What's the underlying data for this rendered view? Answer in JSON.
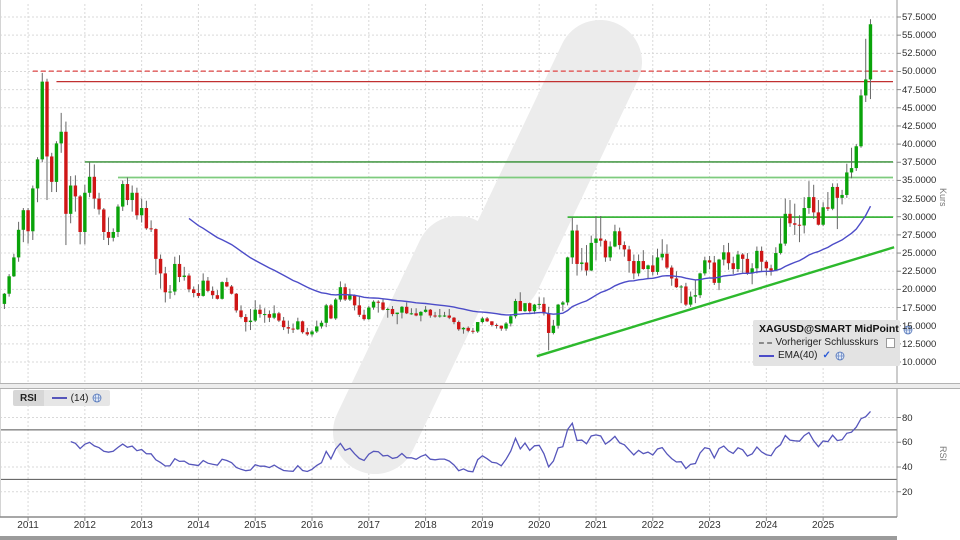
{
  "colors": {
    "up": "#0aa30a",
    "down": "#cf1616",
    "wick": "#666666",
    "ema": "#4c4cc8",
    "rsi": "#5656bb",
    "grid": "#d9d9d9",
    "axis": "#888888",
    "rsi_level": "#555555",
    "watermark": "#ececec",
    "text": "#2b2b2b"
  },
  "legend_main": {
    "title": "XAGUSD@SMART MidPoint",
    "prev_close_label": "Vorheriger Schlusskurs",
    "ema_label": "EMA(40)"
  },
  "legend_rsi": {
    "label": "RSI",
    "params": "(14)"
  },
  "icons": {
    "ema_visible_check": "✓"
  },
  "axes": {
    "price_axis_title": "Kurs",
    "rsi_axis_title": "RSI",
    "price_ticks": [
      57.5,
      55,
      52.5,
      50,
      47.5,
      45,
      42.5,
      40,
      37.5,
      35,
      32.5,
      30,
      27.5,
      25,
      22.5,
      20,
      17.5,
      15,
      12.5,
      10
    ],
    "rsi_ticks": [
      80,
      60,
      40,
      20
    ],
    "years": [
      "2011",
      "2012",
      "2013",
      "2014",
      "2015",
      "2016",
      "2017",
      "2018",
      "2019",
      "2020",
      "2021",
      "2022",
      "2023",
      "2024",
      "2025"
    ]
  },
  "chart_data": {
    "type": "candlestick",
    "title": "XAGUSD@SMART MidPoint",
    "start_month": "2010-08",
    "interval": "monthly",
    "ylim": [
      10,
      57.5
    ],
    "rsi_range_lines": [
      30,
      70
    ],
    "indicators": [
      {
        "name": "EMA",
        "period": 40
      },
      {
        "name": "RSI",
        "period": 14
      }
    ],
    "ohlc": [
      [
        18.0,
        19.5,
        17.3,
        19.4
      ],
      [
        19.4,
        22.1,
        19.0,
        21.8
      ],
      [
        21.8,
        24.9,
        21.7,
        24.4
      ],
      [
        24.4,
        29.3,
        23.8,
        28.2
      ],
      [
        28.2,
        31.2,
        26.5,
        30.9
      ],
      [
        30.9,
        31.2,
        26.3,
        28.0
      ],
      [
        28.0,
        34.3,
        26.8,
        33.9
      ],
      [
        33.9,
        38.2,
        32.0,
        37.9
      ],
      [
        37.9,
        49.8,
        37.5,
        48.6
      ],
      [
        48.6,
        49.0,
        32.3,
        38.3
      ],
      [
        38.3,
        38.8,
        33.4,
        34.8
      ],
      [
        34.8,
        40.4,
        33.4,
        40.1
      ],
      [
        40.1,
        44.3,
        38.8,
        41.7
      ],
      [
        41.7,
        43.1,
        26.1,
        30.4
      ],
      [
        30.4,
        35.6,
        29.1,
        34.3
      ],
      [
        34.3,
        35.7,
        30.7,
        32.8
      ],
      [
        32.8,
        33.0,
        26.2,
        27.9
      ],
      [
        27.9,
        34.4,
        26.2,
        33.3
      ],
      [
        33.3,
        37.5,
        32.7,
        35.5
      ],
      [
        35.5,
        37.2,
        31.1,
        32.5
      ],
      [
        32.5,
        33.3,
        30.3,
        31.0
      ],
      [
        31.0,
        31.2,
        26.8,
        27.9
      ],
      [
        27.9,
        29.9,
        26.1,
        27.1
      ],
      [
        27.1,
        28.4,
        26.6,
        27.9
      ],
      [
        27.9,
        31.7,
        27.2,
        31.4
      ],
      [
        31.4,
        35.0,
        30.8,
        34.5
      ],
      [
        34.5,
        35.4,
        31.6,
        32.3
      ],
      [
        32.3,
        34.3,
        30.7,
        33.3
      ],
      [
        33.3,
        34.0,
        29.6,
        30.2
      ],
      [
        30.2,
        32.5,
        29.2,
        31.2
      ],
      [
        31.2,
        32.2,
        28.2,
        28.4
      ],
      [
        28.4,
        29.5,
        27.9,
        28.3
      ],
      [
        28.3,
        28.4,
        22.0,
        24.2
      ],
      [
        24.2,
        24.8,
        20.1,
        22.2
      ],
      [
        22.2,
        23.1,
        18.2,
        19.6
      ],
      [
        19.6,
        20.6,
        18.7,
        19.7
      ],
      [
        19.7,
        24.5,
        19.2,
        23.5
      ],
      [
        23.5,
        24.7,
        21.0,
        21.7
      ],
      [
        21.7,
        23.1,
        21.2,
        21.9
      ],
      [
        21.9,
        22.2,
        19.6,
        20.0
      ],
      [
        20.0,
        20.4,
        18.9,
        19.5
      ],
      [
        19.5,
        20.7,
        18.8,
        19.1
      ],
      [
        19.1,
        22.2,
        19.0,
        21.2
      ],
      [
        21.2,
        21.7,
        19.6,
        19.8
      ],
      [
        19.8,
        20.4,
        18.7,
        19.2
      ],
      [
        19.2,
        19.9,
        18.6,
        18.7
      ],
      [
        18.7,
        21.1,
        18.6,
        21.0
      ],
      [
        21.0,
        21.6,
        20.3,
        20.4
      ],
      [
        20.4,
        20.6,
        19.3,
        19.4
      ],
      [
        19.4,
        19.5,
        16.8,
        17.1
      ],
      [
        17.1,
        17.8,
        16.0,
        16.2
      ],
      [
        16.2,
        16.6,
        14.2,
        15.5
      ],
      [
        15.5,
        17.3,
        14.4,
        15.7
      ],
      [
        15.7,
        18.5,
        15.5,
        17.2
      ],
      [
        17.2,
        17.9,
        16.1,
        16.6
      ],
      [
        16.6,
        17.4,
        15.4,
        16.6
      ],
      [
        16.6,
        17.1,
        15.5,
        16.1
      ],
      [
        16.1,
        17.8,
        15.9,
        16.7
      ],
      [
        16.7,
        16.9,
        15.5,
        15.7
      ],
      [
        15.7,
        16.2,
        14.4,
        14.8
      ],
      [
        14.8,
        15.7,
        13.9,
        14.6
      ],
      [
        14.6,
        15.3,
        14.0,
        14.5
      ],
      [
        14.5,
        16.1,
        14.4,
        15.6
      ],
      [
        15.6,
        15.7,
        13.9,
        14.1
      ],
      [
        14.1,
        14.7,
        13.6,
        13.8
      ],
      [
        13.8,
        14.4,
        13.5,
        14.2
      ],
      [
        14.2,
        15.7,
        14.0,
        14.9
      ],
      [
        14.9,
        15.7,
        14.6,
        15.4
      ],
      [
        15.4,
        18.0,
        14.8,
        17.8
      ],
      [
        17.8,
        18.0,
        15.9,
        16.0
      ],
      [
        16.0,
        18.8,
        15.8,
        18.6
      ],
      [
        18.6,
        21.1,
        18.3,
        20.3
      ],
      [
        20.3,
        20.8,
        18.4,
        18.6
      ],
      [
        18.6,
        20.1,
        18.4,
        19.2
      ],
      [
        19.2,
        19.3,
        17.1,
        17.8
      ],
      [
        17.8,
        19.0,
        16.2,
        16.5
      ],
      [
        16.5,
        17.2,
        15.7,
        15.9
      ],
      [
        15.9,
        17.7,
        15.8,
        17.5
      ],
      [
        17.5,
        18.5,
        17.2,
        18.3
      ],
      [
        18.3,
        18.5,
        16.8,
        18.2
      ],
      [
        18.2,
        18.6,
        17.1,
        17.2
      ],
      [
        17.2,
        17.5,
        16.1,
        17.3
      ],
      [
        17.3,
        17.7,
        16.3,
        16.6
      ],
      [
        16.6,
        16.8,
        15.2,
        16.8
      ],
      [
        16.8,
        17.7,
        16.0,
        17.6
      ],
      [
        17.6,
        18.2,
        16.6,
        16.7
      ],
      [
        16.7,
        17.4,
        16.5,
        16.7
      ],
      [
        16.7,
        17.4,
        16.3,
        16.4
      ],
      [
        16.4,
        17.0,
        15.6,
        16.9
      ],
      [
        16.9,
        17.7,
        16.8,
        17.2
      ],
      [
        17.2,
        17.3,
        16.1,
        16.4
      ],
      [
        16.4,
        16.9,
        16.1,
        16.3
      ],
      [
        16.3,
        17.3,
        16.1,
        16.4
      ],
      [
        16.4,
        16.9,
        16.2,
        16.4
      ],
      [
        16.4,
        17.3,
        15.9,
        16.1
      ],
      [
        16.1,
        16.2,
        15.2,
        15.5
      ],
      [
        15.5,
        15.7,
        14.3,
        14.5
      ],
      [
        14.5,
        14.8,
        13.9,
        14.7
      ],
      [
        14.7,
        14.9,
        14.1,
        14.3
      ],
      [
        14.3,
        14.7,
        13.9,
        14.2
      ],
      [
        14.2,
        15.5,
        14.0,
        15.5
      ],
      [
        15.5,
        16.2,
        15.3,
        16.0
      ],
      [
        16.0,
        16.2,
        15.5,
        15.6
      ],
      [
        15.6,
        15.6,
        14.9,
        15.1
      ],
      [
        15.1,
        15.3,
        14.6,
        15.0
      ],
      [
        15.0,
        15.0,
        14.3,
        14.6
      ],
      [
        14.6,
        15.5,
        14.3,
        15.3
      ],
      [
        15.3,
        16.6,
        14.9,
        16.3
      ],
      [
        16.3,
        18.7,
        16.0,
        18.4
      ],
      [
        18.4,
        19.6,
        17.5,
        17.0
      ],
      [
        17.0,
        18.1,
        16.9,
        18.1
      ],
      [
        18.1,
        18.2,
        16.8,
        17.0
      ],
      [
        17.0,
        18.0,
        16.6,
        17.9
      ],
      [
        17.9,
        18.9,
        17.3,
        18.0
      ],
      [
        18.0,
        18.9,
        16.4,
        16.7
      ],
      [
        16.7,
        17.6,
        11.6,
        14.0
      ],
      [
        14.0,
        15.8,
        13.8,
        15.0
      ],
      [
        15.0,
        18.0,
        14.6,
        17.9
      ],
      [
        17.9,
        18.4,
        17.0,
        18.2
      ],
      [
        18.2,
        24.5,
        17.8,
        24.4
      ],
      [
        24.4,
        29.9,
        23.5,
        28.1
      ],
      [
        28.1,
        28.9,
        21.9,
        23.5
      ],
      [
        23.5,
        25.7,
        22.6,
        23.7
      ],
      [
        23.7,
        26.1,
        21.9,
        22.6
      ],
      [
        22.6,
        27.4,
        22.5,
        26.4
      ],
      [
        26.4,
        30.1,
        24.0,
        27.0
      ],
      [
        27.0,
        30.1,
        25.9,
        26.7
      ],
      [
        26.7,
        26.9,
        23.8,
        24.4
      ],
      [
        24.4,
        26.6,
        23.9,
        25.9
      ],
      [
        25.9,
        28.9,
        25.8,
        28.0
      ],
      [
        28.0,
        28.5,
        25.5,
        26.1
      ],
      [
        26.1,
        26.6,
        24.5,
        25.5
      ],
      [
        25.5,
        26.0,
        22.3,
        23.9
      ],
      [
        23.9,
        24.8,
        21.4,
        22.2
      ],
      [
        22.2,
        24.8,
        21.8,
        23.9
      ],
      [
        23.9,
        25.4,
        22.7,
        22.8
      ],
      [
        22.8,
        23.4,
        21.4,
        23.3
      ],
      [
        23.3,
        24.7,
        21.9,
        22.4
      ],
      [
        22.4,
        25.6,
        22.0,
        24.4
      ],
      [
        24.4,
        26.9,
        24.0,
        24.9
      ],
      [
        24.9,
        26.2,
        22.8,
        23.0
      ],
      [
        23.0,
        23.3,
        20.5,
        21.5
      ],
      [
        21.5,
        22.5,
        20.2,
        20.3
      ],
      [
        20.3,
        20.6,
        18.1,
        20.4
      ],
      [
        20.4,
        20.9,
        17.7,
        17.9
      ],
      [
        17.9,
        19.7,
        17.6,
        19.0
      ],
      [
        19.0,
        21.3,
        18.1,
        19.2
      ],
      [
        19.2,
        22.3,
        18.8,
        22.2
      ],
      [
        22.2,
        24.5,
        21.9,
        24.0
      ],
      [
        24.0,
        24.6,
        22.8,
        23.7
      ],
      [
        23.7,
        24.6,
        20.6,
        20.9
      ],
      [
        20.9,
        24.2,
        19.9,
        24.1
      ],
      [
        24.1,
        26.1,
        23.3,
        25.1
      ],
      [
        25.1,
        26.4,
        22.7,
        23.6
      ],
      [
        23.6,
        24.5,
        22.1,
        22.8
      ],
      [
        22.8,
        25.3,
        22.4,
        24.8
      ],
      [
        24.8,
        25.0,
        22.3,
        24.2
      ],
      [
        24.2,
        25.0,
        22.0,
        22.2
      ],
      [
        22.2,
        23.6,
        20.7,
        22.9
      ],
      [
        22.9,
        25.9,
        22.2,
        25.3
      ],
      [
        25.3,
        25.9,
        22.5,
        23.8
      ],
      [
        23.8,
        24.0,
        21.9,
        22.9
      ],
      [
        22.9,
        23.4,
        21.9,
        22.6
      ],
      [
        22.6,
        25.8,
        22.5,
        25.0
      ],
      [
        25.0,
        29.8,
        24.8,
        26.3
      ],
      [
        26.3,
        32.5,
        26.0,
        30.4
      ],
      [
        30.4,
        32.3,
        28.6,
        29.1
      ],
      [
        29.1,
        31.8,
        27.5,
        28.9
      ],
      [
        28.9,
        30.2,
        26.5,
        28.8
      ],
      [
        28.8,
        32.7,
        27.7,
        31.2
      ],
      [
        31.2,
        34.9,
        30.4,
        32.7
      ],
      [
        32.7,
        34.4,
        29.7,
        30.6
      ],
      [
        30.6,
        32.3,
        28.8,
        28.9
      ],
      [
        28.9,
        32.0,
        28.7,
        31.3
      ],
      [
        31.3,
        33.4,
        30.8,
        31.1
      ],
      [
        31.1,
        34.6,
        30.9,
        34.1
      ],
      [
        34.1,
        34.6,
        28.3,
        32.6
      ],
      [
        32.6,
        33.7,
        31.7,
        33.0
      ],
      [
        33.0,
        37.3,
        32.6,
        36.1
      ],
      [
        36.1,
        39.5,
        35.3,
        36.7
      ],
      [
        36.7,
        40.0,
        36.3,
        39.7
      ],
      [
        39.7,
        47.5,
        39.5,
        46.7
      ],
      [
        46.7,
        54.5,
        45.8,
        48.9
      ],
      [
        48.9,
        57.2,
        46.2,
        56.5
      ]
    ],
    "hlines": [
      {
        "name": "resistance-upper",
        "price": 50.05,
        "from_index": 6,
        "color": "#e04545",
        "dash": "5,3",
        "width": 1.3
      },
      {
        "name": "resistance-lower",
        "price": 48.6,
        "from_index": 11,
        "color": "#c13030",
        "dash": "",
        "width": 1.3
      },
      {
        "name": "resistance-2012-high",
        "price": 37.55,
        "from_index": 17,
        "color": "#2e8b2e",
        "dash": "",
        "width": 1.4
      },
      {
        "name": "resistance-mid",
        "price": 35.4,
        "from_index": 24,
        "color": "#7ecb7e",
        "dash": "",
        "width": 1.7
      },
      {
        "name": "resistance-2020-high",
        "price": 29.95,
        "from_index": 119,
        "color": "#3bb53b",
        "dash": "",
        "width": 1.7
      }
    ],
    "trendline": {
      "name": "rising-support",
      "x1_index": 112.5,
      "price1": 10.8,
      "x2_index": 188,
      "price2": 25.8,
      "color": "#2db92d",
      "width": 2.4
    }
  }
}
